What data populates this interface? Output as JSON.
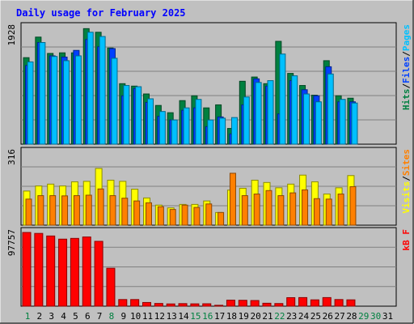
{
  "chart_data": [
    {
      "type": "bar",
      "title": "Daily usage for February 2025",
      "ytick": "1928",
      "series": [
        {
          "name": "Hits",
          "color": "#008040"
        },
        {
          "name": "Files",
          "color": "#0040ff"
        },
        {
          "name": "Pages",
          "color": "#00c0ff"
        }
      ],
      "legend_separator": "/",
      "hits": [
        1430,
        1770,
        1500,
        1510,
        1510,
        1910,
        1850,
        1590,
        1000,
        960,
        830,
        640,
        520,
        720,
        800,
        600,
        650,
        260,
        1040,
        1110,
        1000,
        1700,
        1170,
        970,
        810,
        1380,
        800,
        760
      ],
      "files": [
        1300,
        1680,
        1460,
        1440,
        1550,
        1730,
        1610,
        1580,
        800,
        920,
        690,
        460,
        400,
        560,
        600,
        290,
        450,
        170,
        650,
        1080,
        960,
        500,
        1050,
        900,
        800,
        1280,
        700,
        700
      ],
      "pages": [
        1360,
        1680,
        1450,
        1380,
        1460,
        1850,
        1780,
        1420,
        970,
        950,
        750,
        540,
        400,
        600,
        740,
        400,
        430,
        440,
        780,
        1020,
        1050,
        1490,
        1130,
        830,
        700,
        1160,
        740,
        680
      ]
    },
    {
      "type": "bar",
      "ytick": "316",
      "series": [
        {
          "name": "Visits",
          "color": "#ffff00"
        },
        {
          "name": "Sites",
          "color": "#ff8000"
        }
      ],
      "legend_separator": "/",
      "visits": [
        148,
        170,
        178,
        170,
        188,
        190,
        246,
        195,
        190,
        156,
        118,
        87,
        75,
        90,
        90,
        105,
        55,
        152,
        160,
        195,
        185,
        162,
        178,
        217,
        188,
        135,
        162,
        215
      ],
      "sites": [
        113,
        128,
        128,
        127,
        128,
        130,
        157,
        128,
        117,
        105,
        97,
        80,
        68,
        87,
        77,
        92,
        55,
        225,
        128,
        135,
        150,
        128,
        140,
        153,
        115,
        113,
        135,
        167
      ]
    },
    {
      "type": "bar",
      "ytick": "97757",
      "series": [
        {
          "name": "kB F",
          "color": "#ff0000"
        }
      ],
      "values": [
        97757,
        96500,
        93100,
        88900,
        89900,
        91800,
        86000,
        50300,
        8800,
        8800,
        4900,
        3600,
        3000,
        3400,
        3100,
        3200,
        1200,
        8000,
        7800,
        7500,
        3900,
        3500,
        11300,
        11400,
        8400,
        11400,
        8800,
        8400
      ]
    }
  ],
  "days": [
    "1",
    "2",
    "3",
    "4",
    "5",
    "6",
    "7",
    "8",
    "9",
    "10",
    "11",
    "12",
    "13",
    "14",
    "15",
    "16",
    "17",
    "18",
    "19",
    "20",
    "21",
    "22",
    "23",
    "24",
    "25",
    "26",
    "27",
    "28",
    "29",
    "30",
    "31"
  ],
  "weekend_days": [
    1,
    8,
    15,
    16,
    22,
    29,
    30
  ],
  "colors": {
    "background": "#c0c0c0",
    "title": "#0000ff",
    "weekday_label": "#000000",
    "weekend_label": "#008040",
    "grid": "#808080"
  }
}
